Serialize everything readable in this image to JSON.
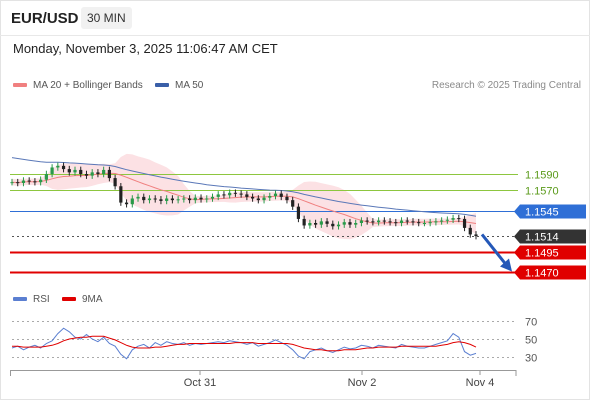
{
  "header": {
    "pair": "EUR/USD",
    "timeframe": "30 MIN",
    "datetime": "Monday, November 3, 2025 11:06:47 AM CET"
  },
  "legend": {
    "items": [
      {
        "label": "MA 20 + Bollinger Bands",
        "color": "#f08080"
      },
      {
        "label": "MA 50",
        "color": "#3a5fa8"
      }
    ],
    "copyright": "Research © 2025 Trading Central"
  },
  "rsi_legend": {
    "items": [
      {
        "label": "RSI",
        "color": "#5b7fd1"
      },
      {
        "label": "9MA",
        "color": "#e00000"
      }
    ]
  },
  "chart_data": [
    {
      "type": "candlestick",
      "x_ticks": [
        "Oct 31",
        "Nov 2",
        "Nov 4"
      ],
      "ylim": [
        1.1455,
        1.1615
      ],
      "levels": [
        {
          "value": 1.159,
          "label": "1.1590",
          "kind": "resistance",
          "color": "#8dc63f"
        },
        {
          "value": 1.157,
          "label": "1.1570",
          "kind": "resistance",
          "color": "#8dc63f"
        },
        {
          "value": 1.1545,
          "label": "1.1545",
          "kind": "pivot",
          "color": "#2f6fd6"
        },
        {
          "value": 1.1514,
          "label": "1.1514",
          "kind": "last-price",
          "color": "#333333"
        },
        {
          "value": 1.1495,
          "label": "1.1495",
          "kind": "support",
          "color": "#e00000"
        },
        {
          "value": 1.147,
          "label": "1.1470",
          "kind": "support",
          "color": "#e00000"
        }
      ],
      "series": [
        {
          "name": "MA 20 + Bollinger Bands"
        },
        {
          "name": "MA 50"
        }
      ],
      "closes": [
        1.158,
        1.1579,
        1.1582,
        1.1581,
        1.158,
        1.1583,
        1.159,
        1.1598,
        1.16,
        1.1596,
        1.1592,
        1.1595,
        1.159,
        1.1588,
        1.1592,
        1.159,
        1.1595,
        1.1585,
        1.1575,
        1.1555,
        1.1553,
        1.156,
        1.1562,
        1.1558,
        1.156,
        1.1559,
        1.1557,
        1.156,
        1.1558,
        1.1559,
        1.156,
        1.1558,
        1.1561,
        1.1559,
        1.156,
        1.1562,
        1.1565,
        1.1564,
        1.1567,
        1.1566,
        1.1565,
        1.1562,
        1.156,
        1.1558,
        1.1561,
        1.1563,
        1.1566,
        1.1562,
        1.1558,
        1.155,
        1.1535,
        1.1527,
        1.153,
        1.1528,
        1.1532,
        1.1529,
        1.1526,
        1.1528,
        1.1531,
        1.1528,
        1.153,
        1.1533,
        1.1532,
        1.1531,
        1.1533,
        1.1532,
        1.1531,
        1.153,
        1.1533,
        1.1532,
        1.1531,
        1.153,
        1.153,
        1.1531,
        1.1532,
        1.1533,
        1.1534,
        1.1536,
        1.1535,
        1.1524,
        1.1516,
        1.1514
      ],
      "trend_arrow": {
        "from": 1.1516,
        "to": 1.1473,
        "direction": "down"
      }
    },
    {
      "type": "line",
      "title": "RSI",
      "ylim": [
        25,
        75
      ],
      "y_ticks": [
        70,
        50,
        30
      ],
      "series": [
        {
          "name": "RSI",
          "color": "#5b7fd1",
          "values": [
            40,
            42,
            38,
            41,
            43,
            40,
            45,
            48,
            56,
            62,
            58,
            52,
            50,
            55,
            50,
            47,
            52,
            45,
            42,
            33,
            28,
            38,
            42,
            44,
            40,
            46,
            43,
            47,
            45,
            44,
            46,
            43,
            45,
            44,
            45,
            46,
            47,
            46,
            48,
            47,
            46,
            44,
            46,
            42,
            44,
            46,
            49,
            46,
            43,
            38,
            31,
            28,
            36,
            38,
            40,
            37,
            35,
            38,
            41,
            39,
            40,
            43,
            42,
            40,
            43,
            42,
            41,
            40,
            44,
            42,
            41,
            40,
            40,
            42,
            44,
            46,
            48,
            56,
            52,
            36,
            32,
            34
          ]
        },
        {
          "name": "9MA",
          "color": "#e00000",
          "values": [
            42,
            42,
            41,
            41,
            41,
            41,
            42,
            43,
            45,
            48,
            50,
            51,
            52,
            52,
            53,
            53,
            53,
            51,
            49,
            46,
            43,
            41,
            40,
            40,
            40,
            41,
            41,
            42,
            43,
            44,
            44,
            45,
            45,
            45,
            45,
            45,
            45,
            45,
            45,
            46,
            46,
            46,
            46,
            45,
            45,
            45,
            45,
            45,
            45,
            44,
            42,
            40,
            39,
            38,
            38,
            37,
            37,
            37,
            38,
            38,
            38,
            39,
            40,
            40,
            41,
            41,
            41,
            41,
            42,
            42,
            42,
            42,
            42,
            42,
            42,
            43,
            44,
            46,
            47,
            46,
            44,
            41
          ]
        }
      ]
    }
  ]
}
